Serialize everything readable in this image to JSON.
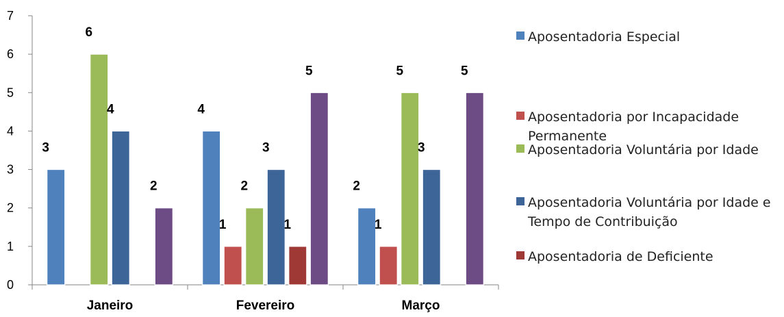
{
  "chart_data": {
    "type": "bar",
    "categories": [
      "Janeiro",
      "Fevereiro",
      "Março"
    ],
    "series": [
      {
        "name": "Aposentadoria Especial",
        "color": "#4F81BD",
        "values": [
          3,
          4,
          2
        ]
      },
      {
        "name": "Aposentadoria por Incapacidade Permanente",
        "color": "#C0504D",
        "values": [
          null,
          1,
          1
        ]
      },
      {
        "name": "Aposentadoria Voluntária por Idade",
        "color": "#9BBB59",
        "values": [
          6,
          2,
          5
        ]
      },
      {
        "name": "Aposentadoria Voluntária por Idade e Tempo de Contribuição",
        "color": "#3D6598",
        "values": [
          4,
          3,
          3
        ]
      },
      {
        "name": "Aposentadoria de Deficiente",
        "color": "#9E3936",
        "values": [
          null,
          1,
          null
        ]
      },
      {
        "name": "",
        "color": "#6D4C86",
        "values": [
          2,
          5,
          5
        ]
      }
    ],
    "ylim": [
      0,
      7
    ],
    "yticks": [
      0,
      1,
      2,
      3,
      4,
      5,
      6,
      7
    ],
    "grid": false,
    "data_labels": true,
    "legend_position": "right"
  }
}
